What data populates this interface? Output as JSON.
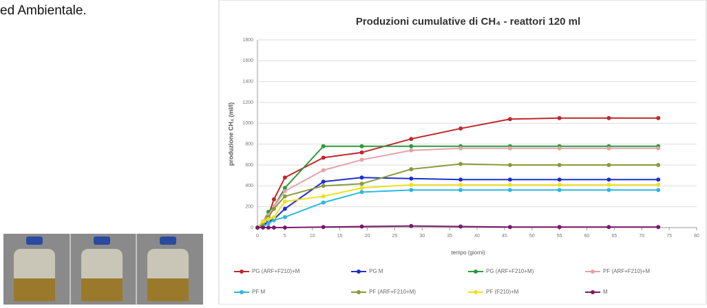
{
  "document": {
    "text": "ed Ambientale."
  },
  "chart_data": {
    "type": "line",
    "title": "Produzioni cumulative di CH₄ - reattori 120 ml",
    "x_label": "tempo (giorni)",
    "y_label": "produzione CH₄ (ml/l)",
    "x": [
      0,
      1,
      2,
      3,
      5,
      12,
      19,
      28,
      37,
      46,
      55,
      64,
      73
    ],
    "xlim": [
      0,
      80
    ],
    "xticks": [
      0,
      5,
      10,
      15,
      20,
      25,
      30,
      35,
      40,
      45,
      50,
      55,
      60,
      65,
      70,
      75,
      80
    ],
    "ylim": [
      0,
      1800
    ],
    "yticks": [
      0,
      200,
      400,
      600,
      800,
      1000,
      1200,
      1400,
      1600,
      1800
    ],
    "grid": true,
    "legend": "bottom",
    "series": [
      {
        "name": "PG (ARF+F210)+M",
        "color": "#c0262b",
        "values": [
          0,
          50,
          120,
          270,
          480,
          670,
          720,
          850,
          950,
          1040,
          1050,
          1050,
          1050
        ]
      },
      {
        "name": "PG M",
        "color": "#1f2fd0",
        "values": [
          0,
          20,
          60,
          80,
          180,
          440,
          480,
          470,
          460,
          460,
          460,
          460,
          460
        ]
      },
      {
        "name": "PG (ARF+F210+M)",
        "color": "#2a9a3a",
        "values": [
          0,
          50,
          150,
          200,
          380,
          780,
          780,
          780,
          780,
          780,
          780,
          780,
          780
        ]
      },
      {
        "name": "PF (ARF+F210)+M",
        "color": "#e8a0a8",
        "values": [
          0,
          60,
          120,
          200,
          350,
          550,
          650,
          740,
          760,
          760,
          760,
          760,
          760
        ]
      },
      {
        "name": "PF M",
        "color": "#2ab8e0",
        "values": [
          0,
          10,
          40,
          70,
          100,
          240,
          340,
          360,
          360,
          360,
          360,
          360,
          360
        ]
      },
      {
        "name": "PF (ARF+F210+M)",
        "color": "#8a9a3a",
        "values": [
          0,
          40,
          100,
          180,
          300,
          400,
          420,
          560,
          610,
          600,
          600,
          600,
          600
        ]
      },
      {
        "name": "PF (F210)+M",
        "color": "#f0e020",
        "values": [
          0,
          60,
          80,
          100,
          250,
          300,
          380,
          410,
          410,
          410,
          410,
          410,
          410
        ]
      },
      {
        "name": "M",
        "color": "#7a1a6a",
        "values": [
          0,
          0,
          0,
          0,
          0,
          5,
          10,
          15,
          10,
          5,
          5,
          5,
          5
        ]
      }
    ]
  }
}
